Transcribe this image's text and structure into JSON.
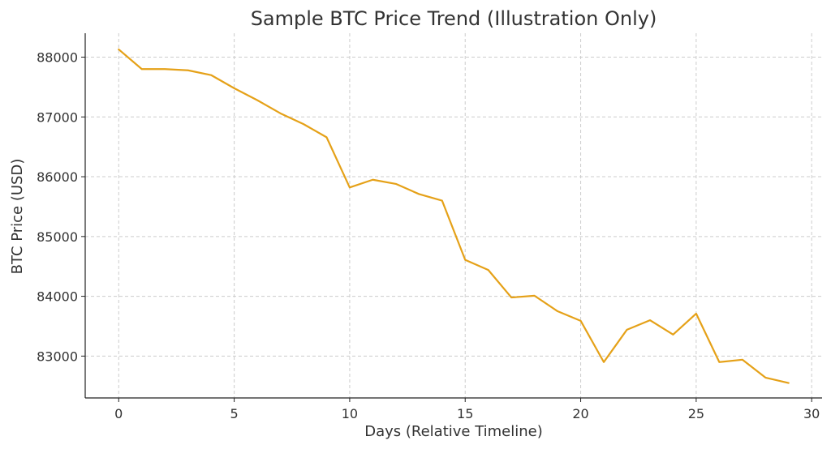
{
  "chart_data": {
    "type": "line",
    "title": "Sample BTC Price Trend (Illustration Only)",
    "xlabel": "Days (Relative Timeline)",
    "ylabel": "BTC Price (USD)",
    "xlim": [
      -1.45,
      30.45
    ],
    "ylim": [
      82300,
      88400
    ],
    "xticks": [
      0,
      5,
      10,
      15,
      20,
      25,
      30
    ],
    "yticks": [
      83000,
      84000,
      85000,
      86000,
      87000,
      88000
    ],
    "grid": true,
    "color": "#E5A118",
    "series": [
      {
        "x": [
          0,
          1,
          2,
          3,
          4,
          5,
          6,
          7,
          8,
          9,
          10,
          11,
          12,
          13,
          14,
          15,
          16,
          17,
          18,
          19,
          20,
          21,
          22,
          23,
          24,
          25,
          26,
          27,
          28,
          29
        ],
        "values": [
          88130,
          87800,
          87800,
          87780,
          87700,
          87480,
          87280,
          87060,
          86880,
          86660,
          85820,
          85950,
          85880,
          85710,
          85600,
          84610,
          84440,
          83980,
          84010,
          83750,
          83590,
          82900,
          83440,
          83600,
          83360,
          83710,
          82900,
          82940,
          82640,
          82550
        ]
      }
    ]
  }
}
